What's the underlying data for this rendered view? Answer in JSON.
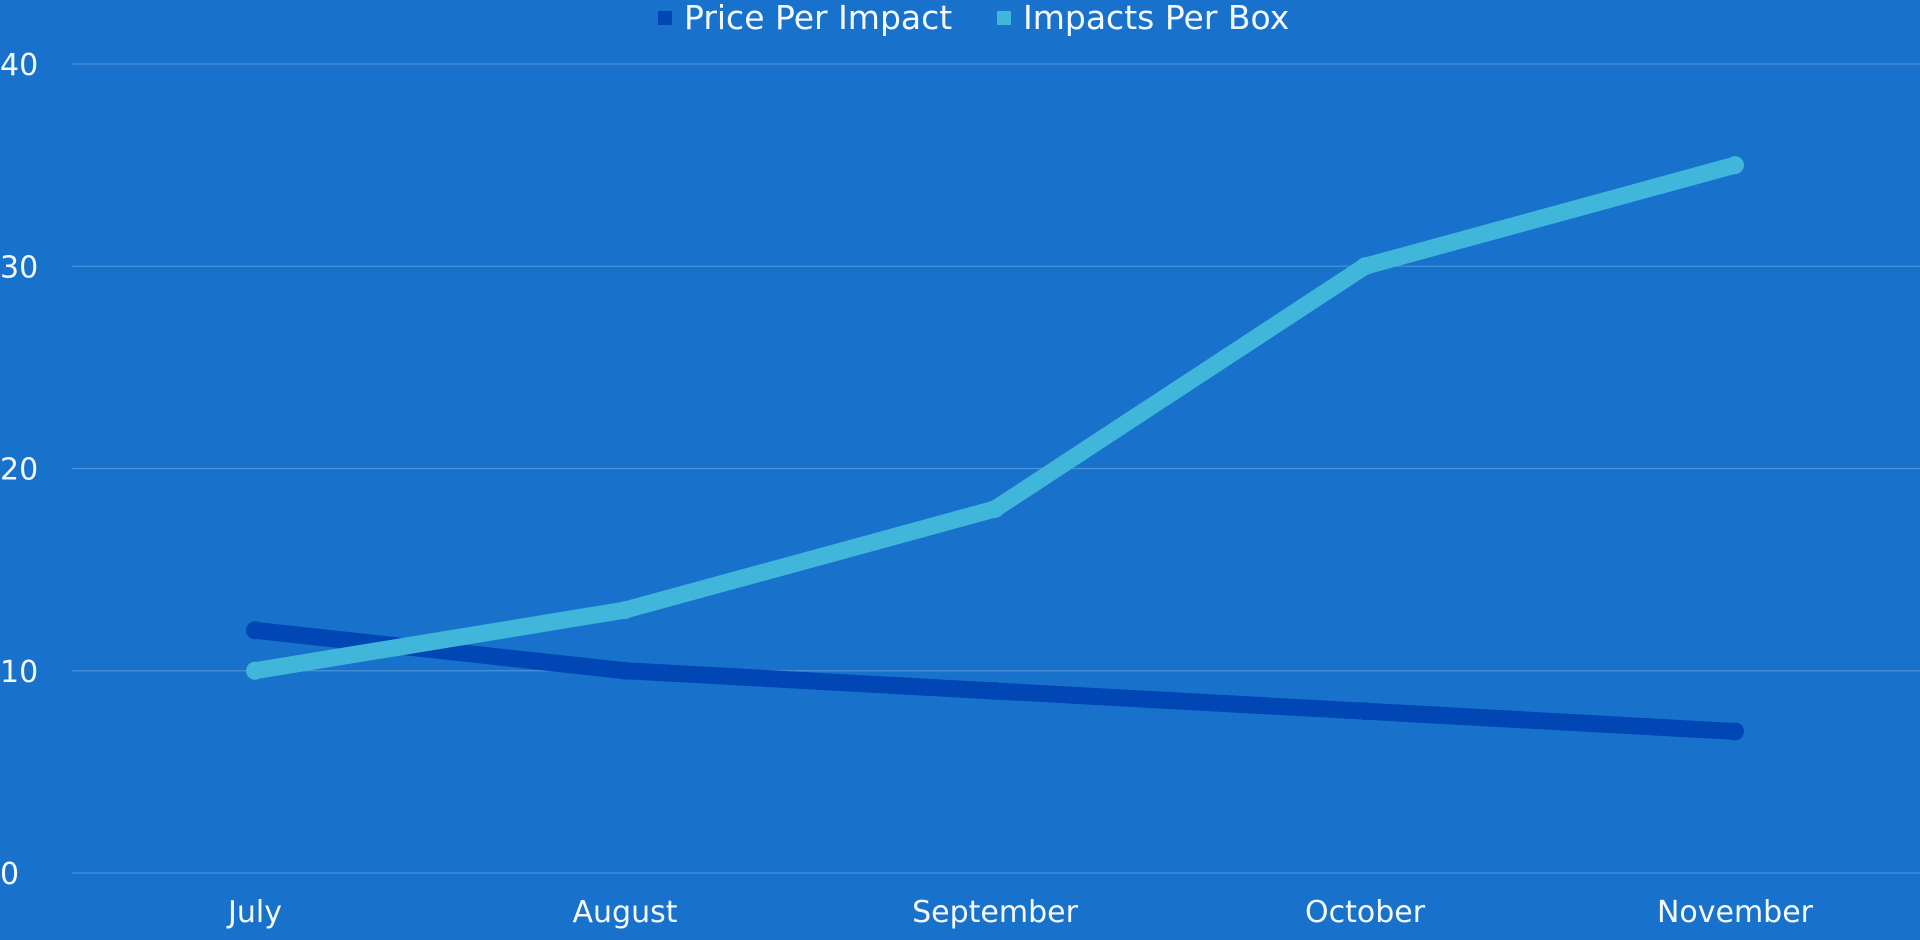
{
  "chart_data": {
    "type": "line",
    "categories": [
      "July",
      "August",
      "September",
      "October",
      "November"
    ],
    "series": [
      {
        "name": "Price Per Impact",
        "values": [
          12,
          10,
          9,
          8,
          7
        ],
        "color": "#0046b5"
      },
      {
        "name": "Impacts Per Box",
        "values": [
          10,
          13,
          18,
          30,
          35
        ],
        "color": "#3fb6da"
      }
    ],
    "y_ticks": [
      "0",
      "10",
      "20",
      "30",
      "40"
    ],
    "ylim": [
      0,
      40
    ],
    "grid": true,
    "legend_position": "top-center",
    "colors": {
      "background": "#1872cc",
      "gridline": "#4a91d8",
      "text": "#f4f8fc"
    }
  }
}
